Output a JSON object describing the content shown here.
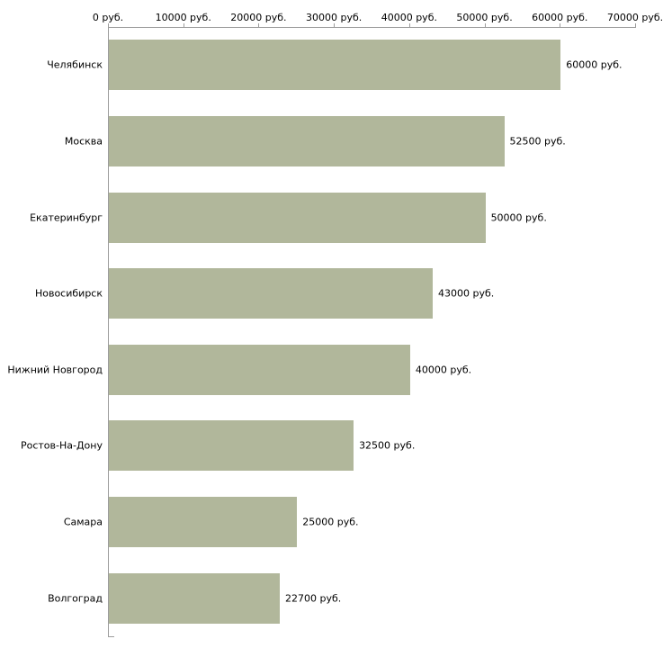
{
  "chart_data": {
    "type": "bar",
    "orientation": "horizontal",
    "title": "",
    "categories": [
      "Челябинск",
      "Москва",
      "Екатеринбург",
      "Новосибирск",
      "Нижний Новгород",
      "Ростов-На-Дону",
      "Самара",
      "Волгоград"
    ],
    "values": [
      60000,
      52500,
      50000,
      43000,
      40000,
      32500,
      25000,
      22700
    ],
    "value_labels": [
      "60000 руб.",
      "52500 руб.",
      "50000 руб.",
      "43000 руб.",
      "40000 руб.",
      "32500 руб.",
      "25000 руб.",
      "22700 руб."
    ],
    "x_ticks": [
      0,
      10000,
      20000,
      30000,
      40000,
      50000,
      60000,
      70000
    ],
    "x_tick_labels": [
      "0 руб.",
      "10000 руб.",
      "20000 руб.",
      "30000 руб.",
      "40000 руб.",
      "50000 руб.",
      "60000 руб.",
      "70000 руб."
    ],
    "xlim": [
      0,
      70000
    ],
    "grid": false,
    "legend": null,
    "bar_color": "#b1b79b",
    "axis_color": "#9c9c9c",
    "text_color": "#000000"
  }
}
